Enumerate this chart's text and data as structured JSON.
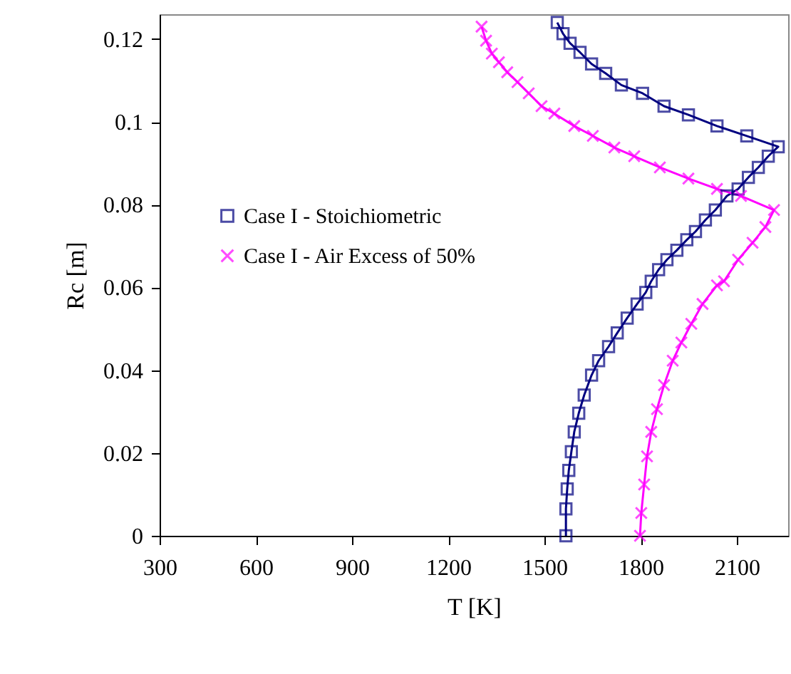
{
  "chart_data": {
    "type": "line",
    "xlabel": "T [K]",
    "ylabel": "Rc [m]",
    "xlim": [
      300,
      2260
    ],
    "xticks": [
      300,
      600,
      900,
      1200,
      1500,
      1800,
      2100
    ],
    "ylim": [
      0,
      0.126
    ],
    "yticks": [
      0,
      0.02,
      0.04,
      0.06,
      0.08,
      0.1,
      0.12
    ],
    "grid": false,
    "legend": "left",
    "line_style": "solid",
    "series": [
      {
        "name": "Case I - Stoichiometric",
        "color": "#000080",
        "marker": "square",
        "x": [
          1567,
          1567,
          1571,
          1576,
          1584,
          1593,
          1607,
          1624,
          1647,
          1669,
          1700,
          1727,
          1758,
          1789,
          1816,
          1833,
          1856,
          1882,
          1913,
          1944,
          1971,
          2002,
          2033,
          2069,
          2104,
          2136,
          2167,
          2198,
          2229,
          2131,
          2038,
          1949,
          1873,
          1806,
          1740,
          1691,
          1647,
          1611,
          1580,
          1558,
          1540
        ],
        "values": [
          0,
          0.0065,
          0.0113,
          0.0158,
          0.0203,
          0.0251,
          0.0296,
          0.034,
          0.0388,
          0.0423,
          0.0457,
          0.049,
          0.0526,
          0.056,
          0.0588,
          0.0615,
          0.0643,
          0.0667,
          0.069,
          0.0715,
          0.0735,
          0.0763,
          0.0787,
          0.0821,
          0.0838,
          0.0866,
          0.089,
          0.0917,
          0.094,
          0.0966,
          0.099,
          0.1017,
          0.1038,
          0.1069,
          0.1089,
          0.1117,
          0.114,
          0.1168,
          0.119,
          0.1213,
          0.124
        ]
      },
      {
        "name": "Case I - Air Excess of 50%",
        "color": "#ff00ff",
        "marker": "cross",
        "x": [
          1798,
          1802,
          1811,
          1820,
          1833,
          1851,
          1873,
          1900,
          1927,
          1958,
          1993,
          2038,
          2060,
          2104,
          2149,
          2189,
          2216,
          2113,
          2038,
          1949,
          1860,
          1780,
          1718,
          1651,
          1593,
          1531,
          1491,
          1451,
          1416,
          1384,
          1358,
          1336,
          1318,
          1304
        ],
        "values": [
          0,
          0.0055,
          0.0124,
          0.0192,
          0.0251,
          0.0306,
          0.0364,
          0.0423,
          0.0467,
          0.0512,
          0.056,
          0.0605,
          0.0615,
          0.0667,
          0.0708,
          0.0746,
          0.0787,
          0.0821,
          0.0838,
          0.0863,
          0.089,
          0.0917,
          0.0938,
          0.0966,
          0.099,
          0.102,
          0.1038,
          0.1069,
          0.1096,
          0.112,
          0.1144,
          0.1165,
          0.1196,
          0.123
        ]
      }
    ]
  }
}
